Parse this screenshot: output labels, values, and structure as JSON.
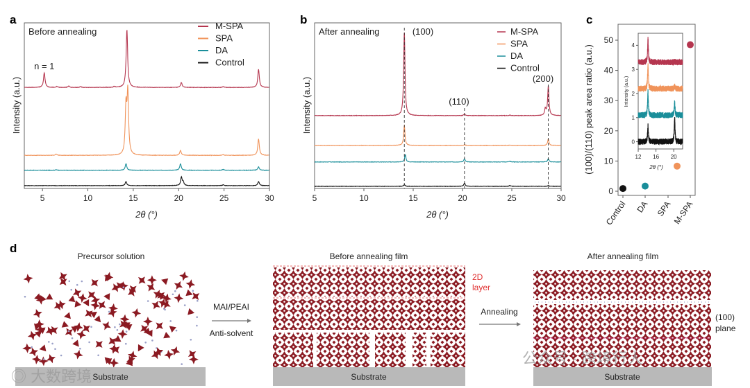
{
  "panels": {
    "a": "a",
    "b": "b",
    "c": "c",
    "d": "d"
  },
  "colors": {
    "M-SPA": "#b5364f",
    "SPA": "#f0935a",
    "DA": "#1a8e9a",
    "Control": "#111111",
    "octahedron": "#8b1a22",
    "substrate": "#b9b9b9"
  },
  "chart_data": [
    {
      "id": "a",
      "type": "line",
      "title": "Before annealing",
      "xlabel": "2θ (°)",
      "ylabel": "Intensity (a.u.)",
      "xlim": [
        3,
        30
      ],
      "ylim": [
        0,
        100
      ],
      "xticks": [
        5,
        10,
        15,
        20,
        25,
        30
      ],
      "annotations": [
        {
          "text": "n = 1",
          "x": 5.2
        }
      ],
      "legend": [
        "M-SPA",
        "SPA",
        "DA",
        "Control"
      ],
      "legend_position": "top-right",
      "series": [
        {
          "name": "M-SPA",
          "baseline": 61,
          "peaks": [
            [
              5.2,
              9
            ],
            [
              6.6,
              0.6
            ],
            [
              7.9,
              0.8
            ],
            [
              9.2,
              0.5
            ],
            [
              12.9,
              0.5
            ],
            [
              14.3,
              35
            ],
            [
              20.3,
              3
            ],
            [
              24.9,
              0.5
            ],
            [
              28.8,
              11
            ]
          ]
        },
        {
          "name": "SPA",
          "baseline": 20,
          "peaks": [
            [
              6.5,
              0.8
            ],
            [
              14.2,
              28
            ],
            [
              14.4,
              37
            ],
            [
              20.2,
              3
            ],
            [
              24.9,
              0.5
            ],
            [
              28.8,
              10
            ]
          ]
        },
        {
          "name": "DA",
          "baseline": 11,
          "peaks": [
            [
              6.5,
              0.3
            ],
            [
              14.2,
              4
            ],
            [
              20.2,
              4
            ],
            [
              24.9,
              0.5
            ],
            [
              28.8,
              2
            ]
          ]
        },
        {
          "name": "Control",
          "baseline": 1.7,
          "peaks": [
            [
              14.2,
              2.5
            ],
            [
              20.3,
              5
            ],
            [
              20.5,
              2
            ],
            [
              24.9,
              0.5
            ],
            [
              28.8,
              2.5
            ]
          ]
        }
      ]
    },
    {
      "id": "b",
      "type": "line",
      "title": "After annealing",
      "xlabel": "2θ (°)",
      "ylabel": "Intensity (a.u.)",
      "xlim": [
        5,
        30
      ],
      "ylim": [
        0,
        100
      ],
      "xticks": [
        5,
        10,
        15,
        20,
        25,
        30
      ],
      "reflections": [
        {
          "label": "(100)",
          "x": 14.1
        },
        {
          "label": "(110)",
          "x": 20.2
        },
        {
          "label": "(200)",
          "x": 28.7
        }
      ],
      "legend": [
        "M-SPA",
        "SPA",
        "DA",
        "Control"
      ],
      "legend_position": "top-right",
      "series": [
        {
          "name": "M-SPA",
          "baseline": 44,
          "peaks": [
            [
              14.1,
              51
            ],
            [
              20.2,
              1
            ],
            [
              24.8,
              0.3
            ],
            [
              28.4,
              4
            ],
            [
              28.7,
              18
            ]
          ]
        },
        {
          "name": "SPA",
          "baseline": 26,
          "peaks": [
            [
              14.1,
              12
            ],
            [
              20.2,
              0.5
            ],
            [
              24.8,
              0.3
            ],
            [
              28.7,
              4
            ]
          ]
        },
        {
          "name": "DA",
          "baseline": 16,
          "peaks": [
            [
              14.2,
              4.5
            ],
            [
              20.2,
              2
            ],
            [
              24.8,
              0.6
            ],
            [
              28.7,
              2
            ]
          ]
        },
        {
          "name": "Control",
          "baseline": 1.3,
          "peaks": [
            [
              14.1,
              1
            ],
            [
              20.2,
              2
            ],
            [
              24.8,
              0.5
            ],
            [
              28.7,
              0.5
            ]
          ]
        }
      ]
    },
    {
      "id": "c",
      "type": "scatter",
      "ylabel": "(100)/(110) peak area ratio (a.u.)",
      "categories": [
        "Control",
        "DA",
        "SPA",
        "M-SPA"
      ],
      "values": [
        0.9,
        1.7,
        8.3,
        48.5
      ],
      "ylim": [
        0,
        55
      ],
      "yticks": [
        0,
        10,
        20,
        30,
        40,
        50
      ],
      "inset": {
        "type": "line",
        "xlabel": "2θ (°)",
        "ylabel": "Intensity (a.u.)",
        "xlim": [
          12,
          22
        ],
        "ylim": [
          -0.3,
          4.5
        ],
        "xticks": [
          12,
          16,
          20
        ],
        "yticks": [
          0,
          1,
          2,
          3,
          4
        ],
        "series": [
          {
            "name": "M-SPA",
            "baseline": 3.3,
            "peaks": [
              [
                14.2,
                1.0
              ],
              [
                20.2,
                0.03
              ]
            ]
          },
          {
            "name": "SPA",
            "baseline": 2.2,
            "peaks": [
              [
                14.2,
                1.0
              ],
              [
                20.2,
                0.1
              ]
            ]
          },
          {
            "name": "DA",
            "baseline": 1.1,
            "peaks": [
              [
                14.2,
                1.0
              ],
              [
                20.2,
                0.55
              ]
            ]
          },
          {
            "name": "Control",
            "baseline": 0,
            "peaks": [
              [
                14.2,
                0.65
              ],
              [
                20.2,
                1.0
              ]
            ]
          }
        ]
      }
    }
  ],
  "schematic": {
    "stages": [
      "Precursor solution",
      "Before annealing film",
      "After annealing film"
    ],
    "substrate": "Substrate",
    "step1": {
      "top": "MAI/PEAI",
      "bottom": "Anti-solvent"
    },
    "step2": {
      "top": "Annealing"
    },
    "layer_2d": [
      "2D",
      "layer"
    ],
    "plane": [
      "(100)",
      "plane"
    ]
  },
  "watermarks": [
    "大数跨境",
    "公众号 · 跨境行人"
  ]
}
